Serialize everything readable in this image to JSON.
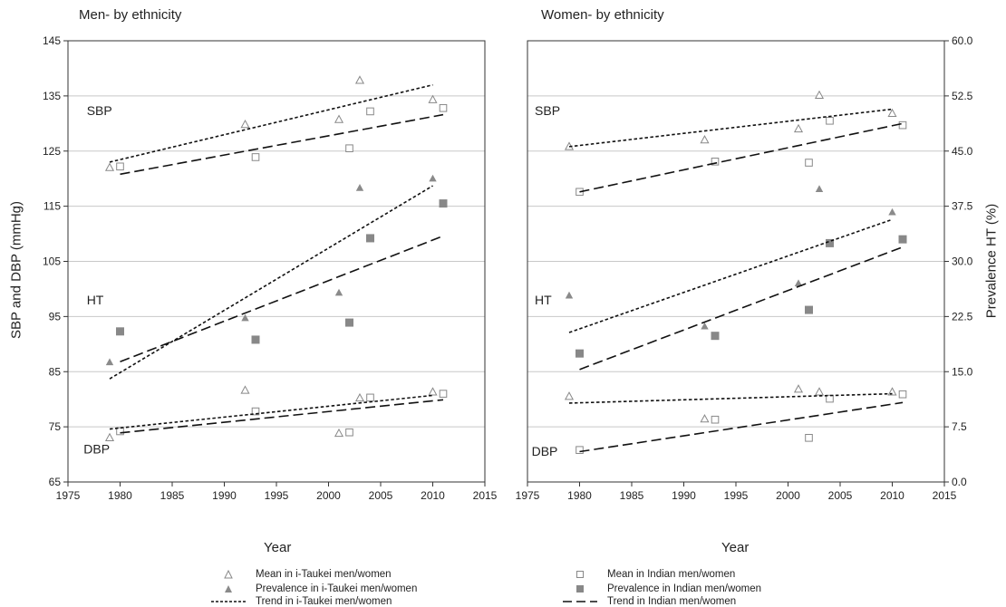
{
  "chart_data": [
    {
      "type": "scatter",
      "title": "Men- by ethnicity",
      "xlabel": "Year",
      "ylabel": "SBP and DBP (mmHg)",
      "xlim": [
        1975,
        2015
      ],
      "ylim": [
        65,
        145
      ],
      "x_ticks": [
        "1975",
        "1980",
        "1985",
        "1990",
        "1995",
        "2000",
        "2005",
        "2010",
        "2015"
      ],
      "y_ticks": [
        "65",
        "75",
        "85",
        "95",
        "105",
        "115",
        "125",
        "135",
        "145"
      ],
      "grid": "horizontal",
      "annotations": [
        "SBP",
        "HT",
        "DBP"
      ],
      "series": [
        {
          "name": "Mean in i-Taukei men/women",
          "marker": "open-triangle",
          "points": [
            [
              1979,
              122
            ],
            [
              1992,
              129.8
            ],
            [
              2001,
              130.7
            ],
            [
              2003,
              137.8
            ],
            [
              2010,
              134.3
            ],
            [
              1979,
              73
            ],
            [
              1992,
              81.6
            ],
            [
              2001,
              73.8
            ],
            [
              2003,
              80.2
            ],
            [
              2010,
              81.3
            ]
          ]
        },
        {
          "name": "Prevalence in i-Taukei men/women",
          "marker": "filled-triangle",
          "points": [
            [
              1979,
              86.7
            ],
            [
              1992,
              94.7
            ],
            [
              2001,
              99.3
            ],
            [
              2003,
              118.3
            ],
            [
              2010,
              120
            ]
          ]
        },
        {
          "name": "Mean in Indian men/women",
          "marker": "open-square",
          "points": [
            [
              1980,
              122.2
            ],
            [
              1993,
              123.9
            ],
            [
              2002,
              125.5
            ],
            [
              2004,
              132.2
            ],
            [
              2011,
              132.8
            ],
            [
              1980,
              74.2
            ],
            [
              1993,
              77.8
            ],
            [
              2002,
              74
            ],
            [
              2004,
              80.3
            ],
            [
              2011,
              81
            ]
          ]
        },
        {
          "name": "Prevalence in Indian men/women",
          "marker": "filled-square",
          "points": [
            [
              1980,
              92.3
            ],
            [
              1993,
              90.8
            ],
            [
              2002,
              93.9
            ],
            [
              2004,
              109.2
            ],
            [
              2011,
              115.5
            ]
          ]
        },
        {
          "name": "Trend in i-Taukei men/women",
          "line": "short-dash",
          "segments": [
            [
              [
                1979,
                123
              ],
              [
                2010,
                137
              ]
            ],
            [
              [
                1979,
                83.7
              ],
              [
                2010,
                118.7
              ]
            ],
            [
              [
                1979,
                74.6
              ],
              [
                2010,
                80.7
              ]
            ]
          ]
        },
        {
          "name": "Trend in Indian men/women",
          "line": "long-dash",
          "segments": [
            [
              [
                1980,
                120.8
              ],
              [
                2011,
                131.6
              ]
            ],
            [
              [
                1980,
                86.8
              ],
              [
                2011,
                109.6
              ]
            ],
            [
              [
                1980,
                73.9
              ],
              [
                2011,
                79.9
              ]
            ]
          ]
        }
      ]
    },
    {
      "type": "scatter",
      "title": "Women- by ethnicity",
      "xlabel": "Year",
      "y2label": "Prevalence HT (%)",
      "xlim": [
        1975,
        2015
      ],
      "ylim": [
        65,
        145
      ],
      "y2lim": [
        0,
        60
      ],
      "x_ticks": [
        "1975",
        "1980",
        "1985",
        "1990",
        "1995",
        "2000",
        "2005",
        "2010",
        "2015"
      ],
      "y2_ticks": [
        "0.0",
        "7.5",
        "15.0",
        "22.5",
        "30.0",
        "37.5",
        "45.0",
        "52.5",
        "60.0"
      ],
      "grid": "horizontal",
      "annotations": [
        "SBP",
        "HT",
        "DBP"
      ],
      "series": [
        {
          "name": "Mean in i-Taukei men/women",
          "marker": "open-triangle",
          "points": [
            [
              1979,
              125.8
            ],
            [
              1992,
              127
            ],
            [
              2001,
              129
            ],
            [
              2003,
              135.1
            ],
            [
              2010,
              131.8
            ],
            [
              1979,
              80.5
            ],
            [
              1992,
              76.4
            ],
            [
              2001,
              81.8
            ],
            [
              2003,
              81.3
            ],
            [
              2010,
              81.3
            ]
          ]
        },
        {
          "name": "Prevalence in i-Taukei men/women",
          "marker": "filled-triangle",
          "points": [
            [
              1979,
              98.8
            ],
            [
              1992,
              93.2
            ],
            [
              2001,
              101
            ],
            [
              2003,
              118.1
            ],
            [
              2010,
              113.9
            ]
          ]
        },
        {
          "name": "Mean in Indian men/women",
          "marker": "open-square",
          "points": [
            [
              1980,
              117.6
            ],
            [
              1993,
              123.1
            ],
            [
              2002,
              122.9
            ],
            [
              2004,
              130.5
            ],
            [
              2011,
              129.7
            ],
            [
              1980,
              70.8
            ],
            [
              1993,
              76.3
            ],
            [
              2002,
              73
            ],
            [
              2004,
              80.1
            ],
            [
              2011,
              80.9
            ]
          ]
        },
        {
          "name": "Prevalence in Indian men/women",
          "marker": "filled-square",
          "points": [
            [
              1980,
              88.3
            ],
            [
              1993,
              91.5
            ],
            [
              2002,
              96.2
            ],
            [
              2004,
              108.3
            ],
            [
              2011,
              109
            ]
          ]
        },
        {
          "name": "Trend in i-Taukei men/women",
          "line": "short-dash",
          "segments": [
            [
              [
                1979,
                125.8
              ],
              [
                2010,
                132.6
              ]
            ],
            [
              [
                1979,
                92.1
              ],
              [
                2010,
                112.6
              ]
            ],
            [
              [
                1979,
                79.3
              ],
              [
                2010,
                81
              ]
            ]
          ]
        },
        {
          "name": "Trend in Indian men/women",
          "line": "long-dash",
          "segments": [
            [
              [
                1980,
                117.6
              ],
              [
                2011,
                130
              ]
            ],
            [
              [
                1980,
                85.4
              ],
              [
                2011,
                107.6
              ]
            ],
            [
              [
                1980,
                70.5
              ],
              [
                2011,
                79.4
              ]
            ]
          ]
        }
      ]
    }
  ],
  "legend": [
    {
      "label": "Mean in i-Taukei men/women",
      "symbol": "open-triangle"
    },
    {
      "label": "Mean in Indian men/women",
      "symbol": "open-square"
    },
    {
      "label": "Prevalence in i-Taukei men/women",
      "symbol": "filled-triangle"
    },
    {
      "label": "Prevalence in Indian men/women",
      "symbol": "filled-square"
    },
    {
      "label": "Trend in i-Taukei men/women",
      "symbol": "short-dash"
    },
    {
      "label": "Trend in Indian men/women",
      "symbol": "long-dash"
    }
  ],
  "colors": {
    "open_marker": "#888888",
    "filled_marker": "#8a8a8a",
    "filled_square": "#888888",
    "trend": "#111111",
    "grid": "#c8c8c8"
  }
}
